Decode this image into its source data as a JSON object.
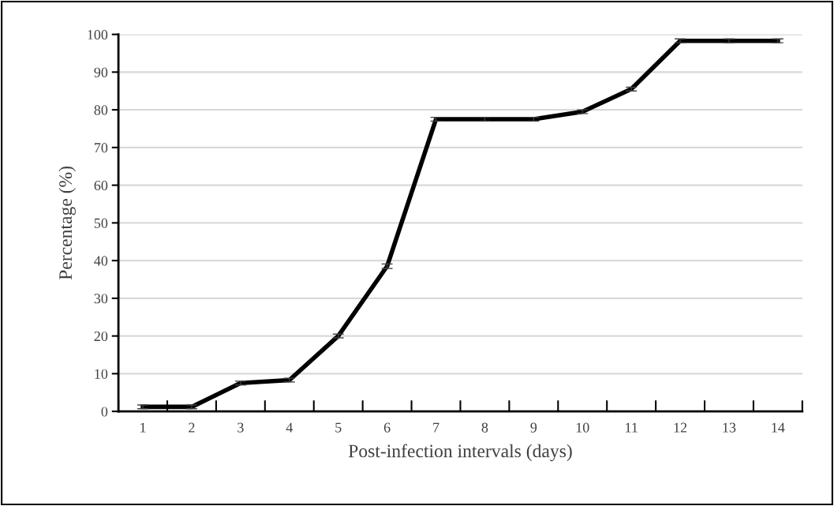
{
  "chart_data": {
    "type": "line",
    "xlabel": "Post-infection intervals (days)",
    "ylabel": "Percentage (%)",
    "categories": [
      "1",
      "2",
      "3",
      "4",
      "5",
      "6",
      "7",
      "8",
      "9",
      "10",
      "11",
      "12",
      "13",
      "14"
    ],
    "series": [
      {
        "color": "#000000",
        "values": [
          1.2,
          1.2,
          7.5,
          8.3,
          20,
          38.5,
          77.5,
          77.5,
          77.5,
          79.5,
          85.5,
          98.3,
          98.3,
          98.3
        ],
        "errors": [
          0.5,
          0.5,
          0.5,
          0.5,
          0.5,
          0.6,
          0.5,
          0.5,
          0.5,
          0.5,
          0.5,
          0.5,
          0.5,
          0.5
        ]
      }
    ],
    "ylim": [
      0,
      100
    ],
    "yticks": [
      0,
      10,
      20,
      30,
      40,
      50,
      60,
      70,
      80,
      90,
      100
    ],
    "grid": "y",
    "marker": "none",
    "line_style": "solid"
  }
}
